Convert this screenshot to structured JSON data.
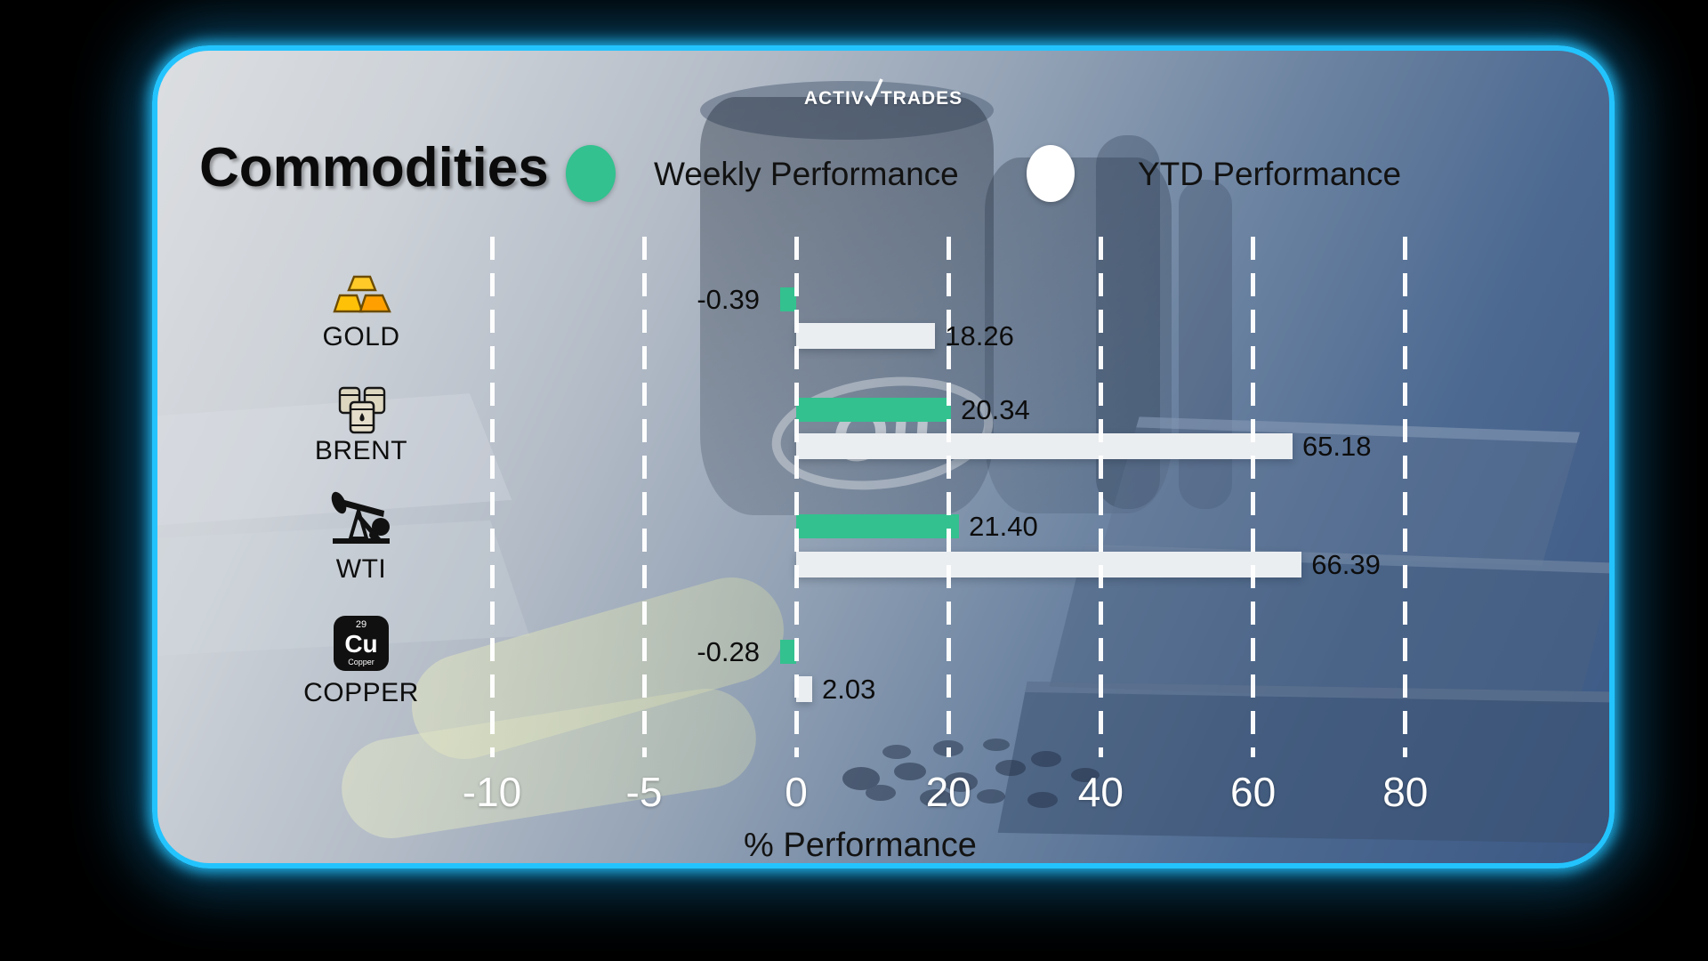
{
  "logo": {
    "name": "ActivTrades",
    "part1": "Activ",
    "part2": "Trades"
  },
  "header": {
    "title": "Commodities",
    "legend": [
      {
        "label": "Weekly Performance",
        "color": "#33c18f"
      },
      {
        "label": "YTD Performance",
        "color": "#ffffff"
      }
    ]
  },
  "background": {
    "watermark": "Oil"
  },
  "colors": {
    "card_border": "#23c4fe",
    "weekly_bar": "#33c18f",
    "ytd_bar": "#ebeef1",
    "grid": "#ffffff",
    "value_text": "#0d0d0d",
    "tick_text": "#ffffff"
  },
  "copper_icon": {
    "number": "29",
    "symbol": "Cu",
    "name": "Copper"
  },
  "chart_data": {
    "type": "bar",
    "orientation": "horizontal",
    "title": "Commodities",
    "xlabel": "% Performance",
    "categories": [
      "GOLD",
      "BRENT",
      "WTI",
      "COPPER"
    ],
    "category_icons": [
      "gold-bars-icon",
      "oil-barrels-icon",
      "oil-pump-icon",
      "copper-element-icon"
    ],
    "series": [
      {
        "name": "Weekly Performance",
        "color": "#33c18f",
        "values": [
          -0.39,
          20.34,
          21.4,
          -0.28
        ],
        "labels": [
          "-0.39",
          "20.34",
          "21.40",
          "-0.28"
        ]
      },
      {
        "name": "YTD Performance",
        "color": "#ebeef1",
        "values": [
          18.26,
          65.18,
          66.39,
          2.03
        ],
        "labels": [
          "18.26",
          "65.18",
          "66.39",
          "2.03"
        ]
      }
    ],
    "x_ticks": [
      -10,
      -5,
      0,
      20,
      40,
      60,
      80
    ],
    "x_tick_labels": [
      "-10",
      "-5",
      "0",
      "20",
      "40",
      "60",
      "80"
    ],
    "axis_note": "non-linear x axis: 5 units per gridline left of 0, 20 units per gridline right of 0",
    "grid": {
      "style": "dashed",
      "color": "#ffffff",
      "direction": "vertical"
    },
    "legend_position": "top"
  }
}
